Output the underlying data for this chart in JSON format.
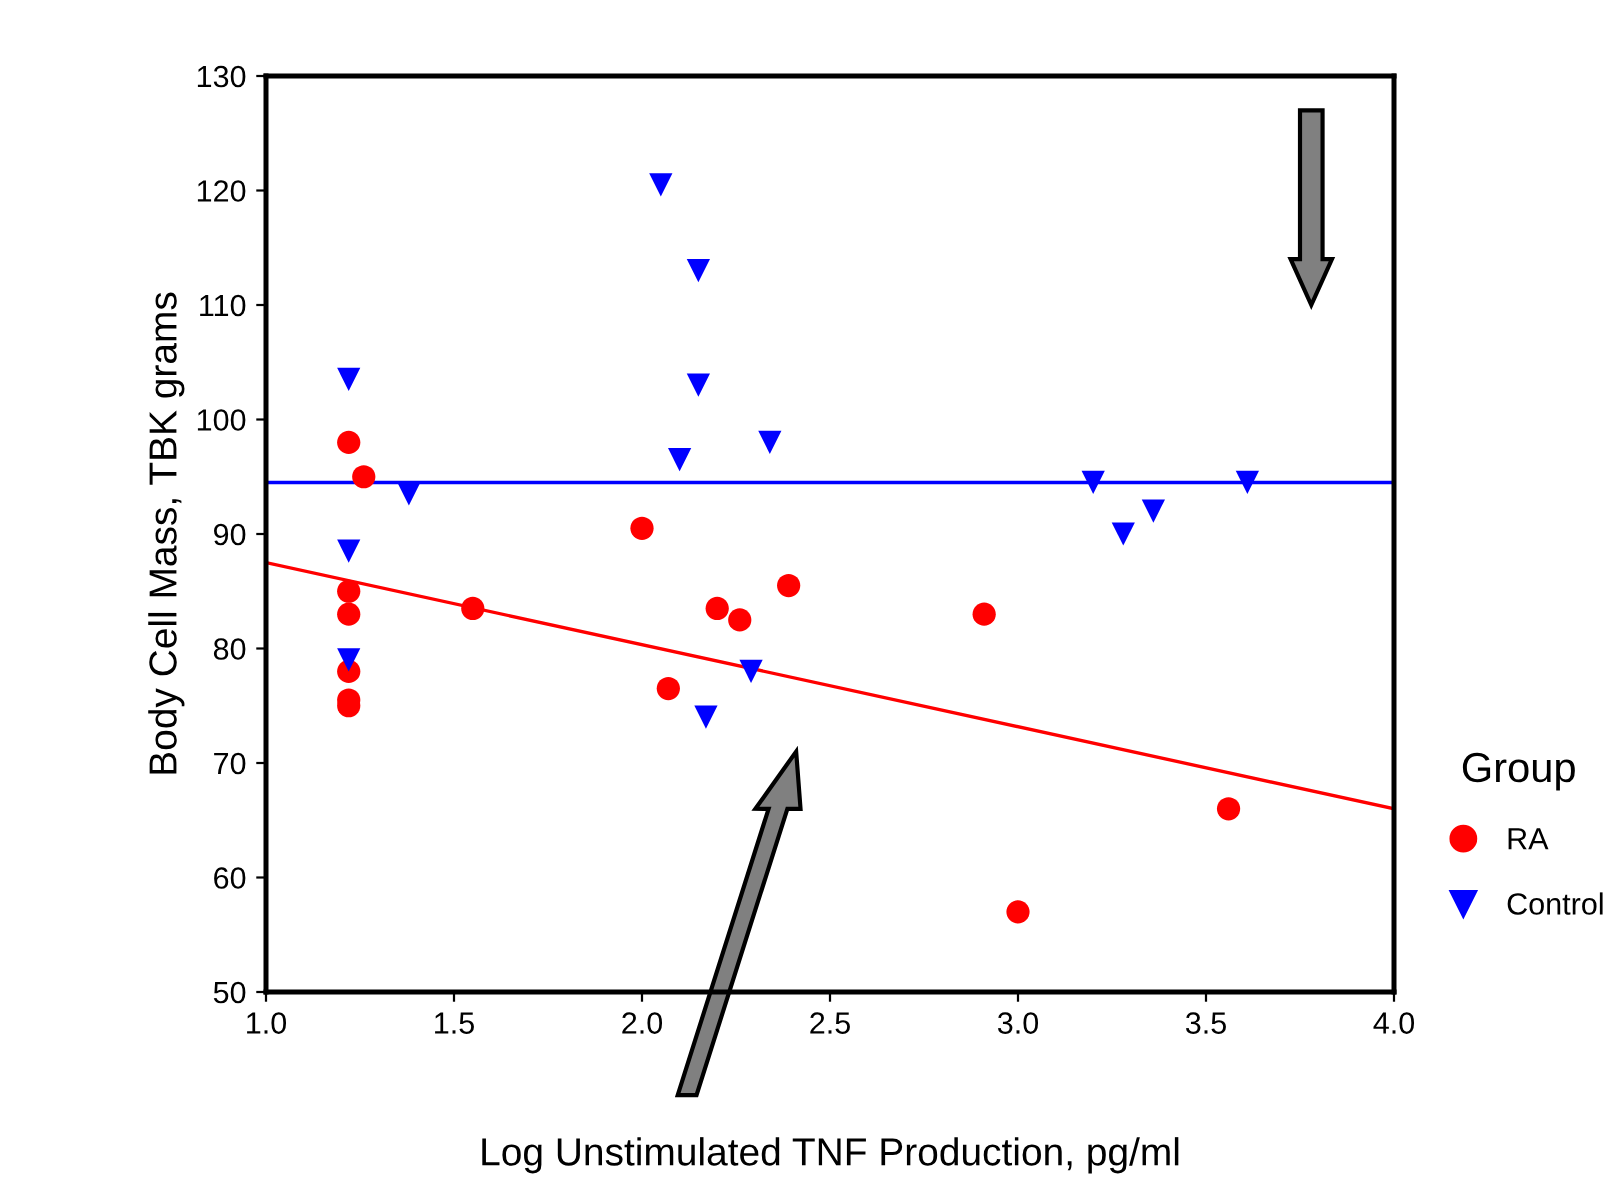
{
  "chart_data": {
    "type": "scatter",
    "xlabel": "Log Unstimulated TNF Production, pg/ml",
    "ylabel": "Body Cell Mass, TBK grams",
    "legend_title": "Group",
    "legend": "right",
    "grid": false,
    "xlim": [
      1.0,
      4.0
    ],
    "xticks": [
      {
        "value": 1.0,
        "label": "1.0"
      },
      {
        "value": 1.5,
        "label": "1.5"
      },
      {
        "value": 2.0,
        "label": "2.0"
      },
      {
        "value": 2.5,
        "label": "2.5"
      },
      {
        "value": 3.0,
        "label": "3.0"
      },
      {
        "value": 3.5,
        "label": "3.5"
      },
      {
        "value": 4.0,
        "label": "4.0"
      }
    ],
    "ylim": [
      50,
      130
    ],
    "yticks": [
      50,
      60,
      70,
      80,
      90,
      100,
      110,
      120,
      130
    ],
    "series": [
      {
        "name": "RA",
        "color": "#ff0000",
        "marker": "circle",
        "x": [
          1.22,
          1.22,
          1.22,
          1.22,
          1.22,
          1.22,
          1.26,
          1.55,
          2.0,
          2.07,
          2.2,
          2.26,
          2.39,
          2.91,
          3.0,
          3.56
        ],
        "values": [
          98,
          85,
          83,
          78,
          75.5,
          75,
          95,
          83.5,
          90.5,
          76.5,
          83.5,
          82.5,
          85.5,
          83,
          57,
          66
        ]
      },
      {
        "name": "Control",
        "color": "#0000ff",
        "marker": "triangle",
        "x": [
          1.22,
          1.22,
          1.22,
          1.38,
          2.05,
          2.15,
          2.15,
          2.1,
          2.34,
          2.29,
          2.17,
          3.2,
          3.28,
          3.36,
          3.61
        ],
        "values": [
          103.5,
          88.5,
          79,
          93.5,
          120.5,
          113,
          103,
          96.5,
          98,
          78,
          74,
          94.5,
          90,
          92,
          94.5
        ]
      },
      {
        "type": "line",
        "color": "#ff0000",
        "x": [
          1.0,
          4.0
        ],
        "values": [
          87.5,
          66
        ]
      },
      {
        "type": "line",
        "color": "#0000ff",
        "x": [
          1.0,
          4.0
        ],
        "values": [
          94.5,
          94.5
        ]
      }
    ]
  }
}
